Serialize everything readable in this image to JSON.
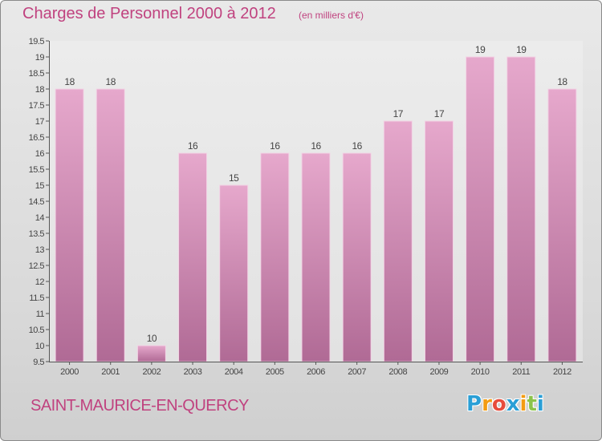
{
  "header": {
    "title": "Charges de Personnel 2000 à 2012",
    "subtitle": "(en milliers d'€)"
  },
  "footer": {
    "place": "SAINT-MAURICE-EN-QUERCY",
    "logo_letters": [
      "P",
      "r",
      "o",
      "x",
      "i",
      "t",
      "i"
    ],
    "logo_colors": [
      "#2a9fd6",
      "#f39c12",
      "#e74c3c",
      "#2a9fd6",
      "#f39c12",
      "#8bc34a",
      "#2a9fd6"
    ]
  },
  "colors": {
    "title": "#c0427f",
    "bar_top": "#e6a8cc",
    "bar_bottom": "#b06a95"
  },
  "chart_data": {
    "type": "bar",
    "title": "Charges de Personnel 2000 à 2012",
    "subtitle": "(en milliers d'€)",
    "categories": [
      "2000",
      "2001",
      "2002",
      "2003",
      "2004",
      "2005",
      "2006",
      "2007",
      "2008",
      "2009",
      "2010",
      "2011",
      "2012"
    ],
    "values": [
      18,
      18,
      10,
      16,
      15,
      16,
      16,
      16,
      17,
      17,
      19,
      19,
      18
    ],
    "value_labels": [
      "18",
      "18",
      "10",
      "16",
      "15",
      "16",
      "16",
      "16",
      "17",
      "17",
      "19",
      "19",
      "18"
    ],
    "ylim": [
      9.5,
      19.5
    ],
    "yticks": [
      "9.5",
      "10",
      "10.5",
      "11",
      "11.5",
      "12",
      "12.5",
      "13",
      "13.5",
      "14",
      "14.5",
      "15",
      "15.5",
      "16",
      "16.5",
      "17",
      "17.5",
      "18",
      "18.5",
      "19",
      "19.5"
    ],
    "grid": false,
    "legend": "none"
  }
}
